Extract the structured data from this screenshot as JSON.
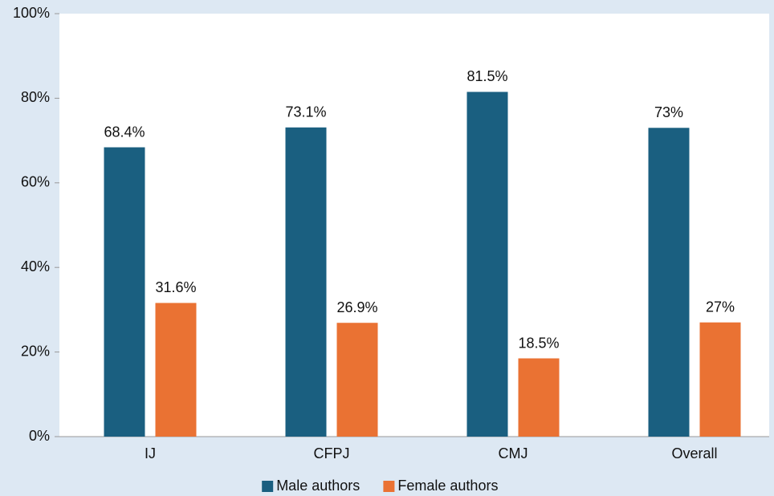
{
  "chart_data": {
    "type": "bar",
    "categories": [
      "IJ",
      "CFPJ",
      "CMJ",
      "Overall"
    ],
    "series": [
      {
        "name": "Male authors",
        "color": "#1a5f80",
        "values": [
          68.4,
          73.1,
          81.5,
          73
        ],
        "value_labels": [
          "68.4%",
          "73.1%",
          "81.5%",
          "73%"
        ]
      },
      {
        "name": "Female authors",
        "color": "#ea7233",
        "values": [
          31.6,
          26.9,
          18.5,
          27
        ],
        "value_labels": [
          "31.6%",
          "26.9%",
          "18.5%",
          "27%"
        ]
      }
    ],
    "ylim": [
      0,
      100
    ],
    "yticks": [
      {
        "value": 0,
        "label": "0%"
      },
      {
        "value": 20,
        "label": "20%"
      },
      {
        "value": 40,
        "label": "40%"
      },
      {
        "value": 60,
        "label": "60%"
      },
      {
        "value": 80,
        "label": "80%"
      },
      {
        "value": 100,
        "label": "100%"
      }
    ],
    "grid": false,
    "legend": "bottom"
  }
}
